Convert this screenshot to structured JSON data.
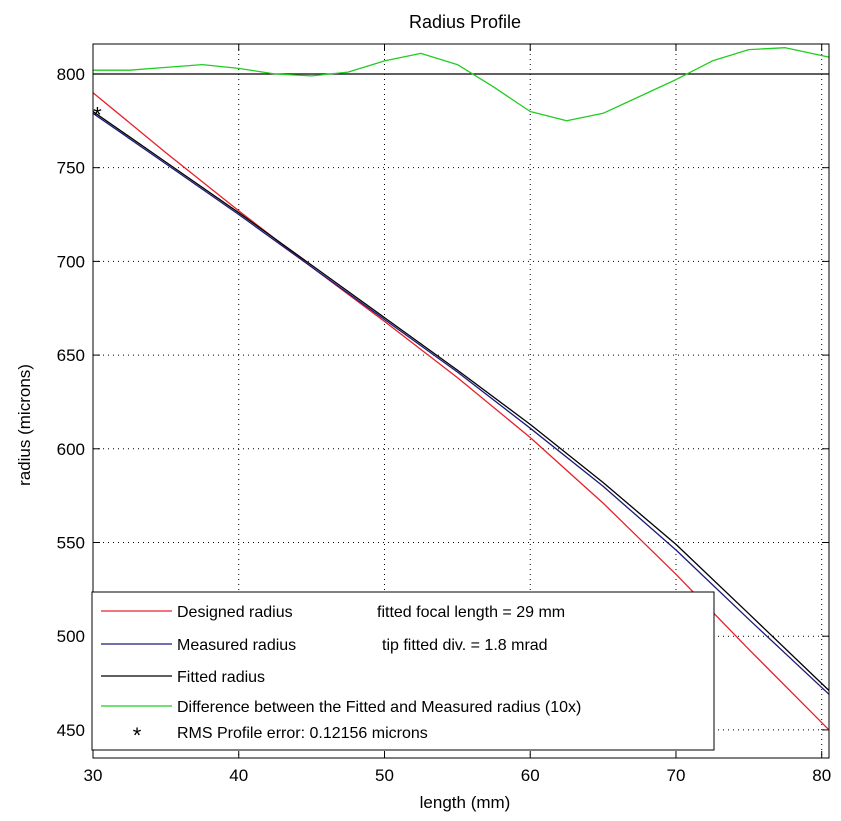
{
  "chart_data": {
    "type": "line",
    "title": "Radius Profile",
    "xlabel": "length (mm)",
    "ylabel": "radius (microns)",
    "xlim": [
      30,
      80.5
    ],
    "ylim": [
      435,
      816
    ],
    "x_ticks": [
      "30",
      "40",
      "50",
      "60",
      "70",
      "80"
    ],
    "y_ticks": [
      "450",
      "500",
      "550",
      "600",
      "650",
      "700",
      "750",
      "800"
    ],
    "grid": true,
    "legend_position": "bottom-left",
    "series": [
      {
        "name": "Designed radius",
        "color": "#e8202a",
        "x": [
          30,
          35,
          40,
          45,
          50,
          55,
          60,
          65,
          70,
          75,
          80.5
        ],
        "y": [
          790,
          758,
          727,
          697,
          668,
          638,
          606,
          571,
          533,
          493,
          450
        ]
      },
      {
        "name": "Measured radius",
        "color": "#1a1a7a",
        "x": [
          30,
          35,
          40,
          45,
          50,
          55,
          60,
          65,
          70,
          75,
          80.5
        ],
        "y": [
          779,
          752,
          725,
          697,
          669,
          641,
          611,
          580,
          546,
          509,
          469
        ]
      },
      {
        "name": "Fitted radius",
        "color": "#000000",
        "x": [
          30,
          35,
          40,
          45,
          50,
          55,
          60,
          65,
          70,
          75,
          80.5
        ],
        "y": [
          780,
          753,
          726,
          698,
          670,
          642,
          613,
          582,
          549,
          512,
          471
        ]
      },
      {
        "name": "Difference between the Fitted and Measured radius (10x)",
        "color": "#22cc22",
        "x": [
          30,
          32.5,
          35,
          37.5,
          40,
          42.5,
          45,
          47.5,
          50,
          52.5,
          55,
          57.5,
          60,
          62.5,
          65,
          67.5,
          70,
          72.5,
          75,
          77.5,
          80.5
        ],
        "y": [
          802,
          802,
          803.5,
          805,
          803,
          800,
          799,
          801,
          807,
          811,
          805,
          793,
          780,
          775,
          779,
          788,
          797,
          807,
          813,
          814,
          809
        ]
      }
    ],
    "baseline": {
      "y": 800,
      "color": "#000000"
    },
    "marker": {
      "symbol": "*",
      "x": 30.3,
      "y": 779
    },
    "legend": {
      "entries": [
        {
          "label": "Designed radius",
          "note": "fitted focal length = 29 mm",
          "color": "#e8202a",
          "kind": "line"
        },
        {
          "label": "Measured radius",
          "note": "tip fitted div. = 1.8 mrad",
          "color": "#1a1a7a",
          "kind": "line"
        },
        {
          "label": "Fitted radius",
          "note": "",
          "color": "#000000",
          "kind": "line"
        },
        {
          "label": "Difference between the Fitted and Measured radius (10x)",
          "note": "",
          "color": "#22cc22",
          "kind": "line"
        },
        {
          "label": "RMS Profile error: 0.12156 microns",
          "note": "",
          "color": "#000000",
          "kind": "marker",
          "symbol": "*"
        }
      ]
    }
  }
}
